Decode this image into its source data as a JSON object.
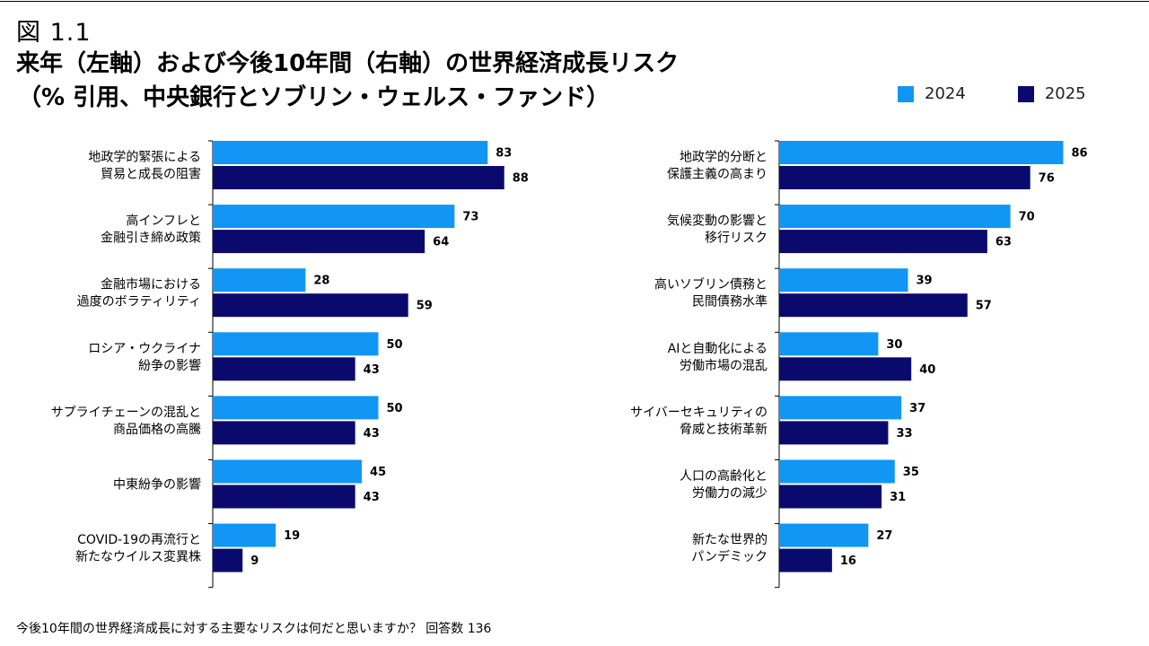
{
  "figure_label": "図 1.1",
  "title_line1": "来年（左軸）および今後10年間（右軸）の世界経済成長リスク",
  "title_line2": "（% 引用、中央銀行とソブリン・ウェルス・ファンド）",
  "footnote": "今後10年間の世界経済成長に対する主要なリスクは何だと思いますか？ 回答数 136",
  "colors": {
    "2024": "#1196f5",
    "2025": "#0a0a6e"
  },
  "chart_data": [
    {
      "type": "bar",
      "orientation": "horizontal",
      "title": "来年",
      "legend": [
        "2024",
        "2025"
      ],
      "categories": [
        [
          "地政学的緊張による",
          "貿易と成長の阻害"
        ],
        [
          "高インフレと",
          "金融引き締め政策"
        ],
        [
          "金融市場における",
          "過度のボラティリティ"
        ],
        [
          "ロシア・ウクライナ",
          "紛争の影響"
        ],
        [
          "サプライチェーンの混乱と",
          "商品価格の高騰"
        ],
        [
          "中東紛争の影響"
        ],
        [
          "COVID-19の再流行と",
          "新たなウイルス変異株"
        ]
      ],
      "series": [
        {
          "name": "2024",
          "values": [
            83,
            73,
            28,
            50,
            50,
            45,
            19
          ]
        },
        {
          "name": "2025",
          "values": [
            88,
            64,
            59,
            43,
            43,
            43,
            9
          ]
        }
      ],
      "xlim": [
        0,
        100
      ]
    },
    {
      "type": "bar",
      "orientation": "horizontal",
      "title": "今後10年間",
      "legend": [
        "2024",
        "2025"
      ],
      "categories": [
        [
          "地政学的分断と",
          "保護主義の高まり"
        ],
        [
          "気候変動の影響と",
          "移行リスク"
        ],
        [
          "高いソブリン債務と",
          "民間債務水準"
        ],
        [
          "AIと自動化による",
          "労働市場の混乱"
        ],
        [
          "サイバーセキュリティの",
          "脅威と技術革新"
        ],
        [
          "人口の高齢化と",
          "労働力の減少"
        ],
        [
          "新たな世界的",
          "パンデミック"
        ]
      ],
      "series": [
        {
          "name": "2024",
          "values": [
            86,
            70,
            39,
            30,
            37,
            35,
            27
          ]
        },
        {
          "name": "2025",
          "values": [
            76,
            63,
            57,
            40,
            33,
            31,
            16
          ]
        }
      ],
      "xlim": [
        0,
        100
      ]
    }
  ]
}
